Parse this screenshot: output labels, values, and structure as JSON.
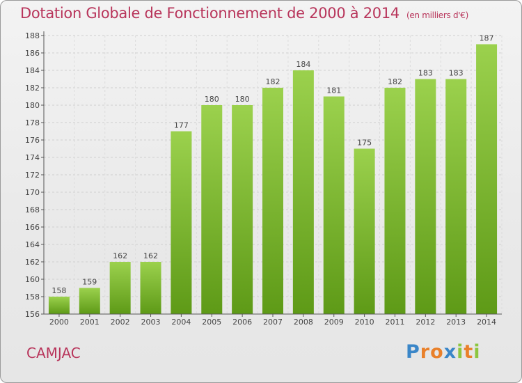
{
  "header": {
    "title": "Dotation Globale de Fonctionnement de 2000 à 2014",
    "unit": "(en milliers d'€)"
  },
  "footer": {
    "commune": "CAMJAC",
    "logo_text": "Proxiti"
  },
  "colors": {
    "title": "#b8355b",
    "bar_top": "#9bd14d",
    "bar_bottom": "#5e9a17"
  },
  "chart_data": {
    "type": "bar",
    "title": "Dotation Globale de Fonctionnement de 2000 à 2014",
    "subtitle": "(en milliers d'€)",
    "categories": [
      "2000",
      "2001",
      "2002",
      "2003",
      "2004",
      "2005",
      "2006",
      "2007",
      "2008",
      "2009",
      "2010",
      "2011",
      "2012",
      "2013",
      "2014"
    ],
    "values": [
      158,
      159,
      162,
      162,
      177,
      180,
      180,
      182,
      184,
      181,
      175,
      182,
      183,
      183,
      187
    ],
    "xlabel": "",
    "ylabel": "",
    "ylim": [
      156,
      188
    ],
    "yticks": [
      156,
      158,
      160,
      162,
      164,
      166,
      168,
      170,
      172,
      174,
      176,
      178,
      180,
      182,
      184,
      186,
      188
    ],
    "grid": true,
    "data_labels": true
  }
}
